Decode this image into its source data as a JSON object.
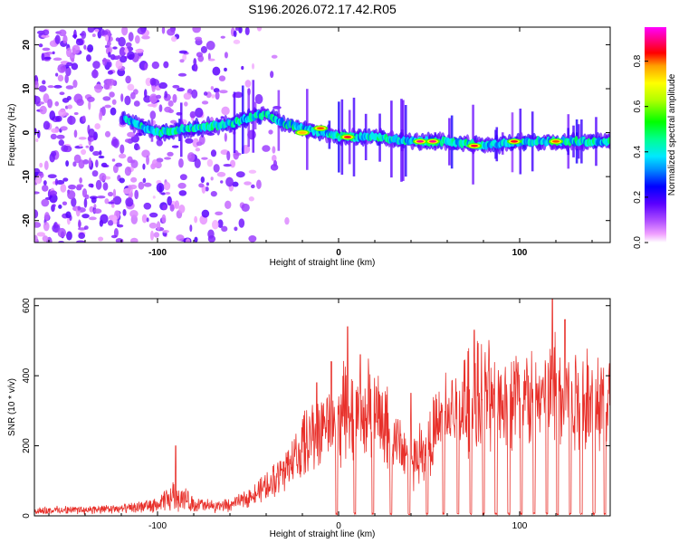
{
  "title": "S196.2026.072.17.42.R05",
  "chart_data": [
    {
      "type": "heatmap",
      "name": "spectrogram",
      "xlabel": "Height of straight line (km)",
      "ylabel": "Frequency (Hz)",
      "xlim": [
        -168,
        150
      ],
      "ylim": [
        -25,
        24
      ],
      "xticks": [
        -100,
        0,
        100
      ],
      "yticks": [
        -20,
        -10,
        0,
        10,
        20
      ],
      "colorbar": {
        "label": "Normalized spectral amplitude",
        "range": [
          0,
          0.95
        ],
        "ticks": [
          0.0,
          0.2,
          0.4,
          0.6,
          0.8
        ],
        "colormap": [
          "#ffffff",
          "#e6ccff",
          "#b070ff",
          "#7a1cff",
          "#3a00ff",
          "#0000ff",
          "#0080ff",
          "#00e0ff",
          "#00ff80",
          "#00ff00",
          "#aaff00",
          "#ffff00",
          "#ffaa00",
          "#ff0000",
          "#ff0080",
          "#ff00ff"
        ]
      },
      "ridge": {
        "description_points_x": [
          -118,
          -100,
          -80,
          -60,
          -45,
          -38,
          -30,
          -20,
          -10,
          0,
          20,
          40,
          60,
          80,
          100,
          120,
          148
        ],
        "description_points_y": [
          3,
          0,
          1,
          2,
          4,
          4,
          2,
          1,
          0,
          -1,
          -1,
          -2,
          -2,
          -3,
          -2,
          -2,
          -2
        ],
        "peaks": [
          {
            "x": -20,
            "y": 0,
            "amp": 0.8
          },
          {
            "x": -10,
            "y": 1,
            "amp": 0.85
          },
          {
            "x": 5,
            "y": -1,
            "amp": 0.9
          },
          {
            "x": 45,
            "y": -2,
            "amp": 0.95
          },
          {
            "x": 52,
            "y": -2,
            "amp": 0.95
          },
          {
            "x": 75,
            "y": -3,
            "amp": 0.9
          },
          {
            "x": 97,
            "y": -2,
            "amp": 0.9
          },
          {
            "x": 120,
            "y": -2,
            "amp": 0.85
          }
        ]
      }
    },
    {
      "type": "line",
      "name": "snr",
      "xlabel": "Height of straight line (km)",
      "ylabel": "SNR (10 * v/v)",
      "xlim": [
        -168,
        150
      ],
      "ylim": [
        0,
        620
      ],
      "xticks": [
        -100,
        0,
        100
      ],
      "yticks": [
        0,
        200,
        400,
        600
      ],
      "color": "#e8302a",
      "envelope_x": [
        -168,
        -120,
        -100,
        -90,
        -80,
        -70,
        -60,
        -50,
        -40,
        -30,
        -20,
        -10,
        0,
        10,
        20,
        30,
        40,
        50,
        60,
        70,
        80,
        90,
        100,
        110,
        120,
        130,
        140,
        150
      ],
      "envelope_y": [
        20,
        25,
        40,
        80,
        45,
        35,
        40,
        70,
        110,
        180,
        260,
        330,
        380,
        400,
        390,
        300,
        200,
        280,
        380,
        420,
        450,
        450,
        460,
        450,
        480,
        460,
        450,
        460
      ],
      "spikes": [
        {
          "x": -90,
          "y": 200
        },
        {
          "x": -12,
          "y": 380
        },
        {
          "x": -4,
          "y": 440
        },
        {
          "x": 5,
          "y": 540
        },
        {
          "x": 12,
          "y": 460
        },
        {
          "x": 40,
          "y": 350
        },
        {
          "x": 75,
          "y": 530
        },
        {
          "x": 118,
          "y": 620
        },
        {
          "x": 125,
          "y": 560
        }
      ],
      "dropouts_x": [
        -1,
        9,
        19,
        29,
        39,
        49,
        58,
        66,
        73,
        80,
        87,
        94,
        101,
        108,
        115,
        121,
        128,
        134,
        141,
        147
      ]
    }
  ]
}
